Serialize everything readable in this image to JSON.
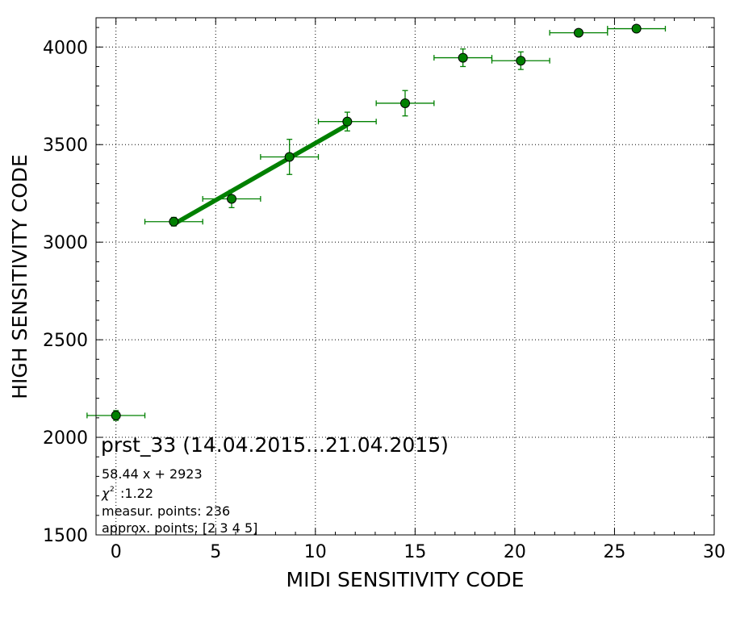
{
  "chart_data": {
    "type": "scatter",
    "title": "",
    "xlabel": "MIDI SENSITIVITY CODE",
    "ylabel": "HIGH SENSITIVITY CODE",
    "xlim": [
      -1,
      30
    ],
    "ylim": [
      1500,
      4150
    ],
    "grid": true,
    "xticks": [
      0,
      5,
      10,
      15,
      20,
      25,
      30
    ],
    "yticks": [
      1500,
      2000,
      2500,
      3000,
      3500,
      4000
    ],
    "colors": {
      "series": "#008000",
      "marker_edge": "#000000"
    },
    "points": [
      {
        "x": 0.0,
        "y": 2112,
        "xerr": 1.45,
        "yerr": 25
      },
      {
        "x": 2.9,
        "y": 3105,
        "xerr": 1.45,
        "yerr": 22
      },
      {
        "x": 5.8,
        "y": 3222,
        "xerr": 1.45,
        "yerr": 45
      },
      {
        "x": 8.7,
        "y": 3437,
        "xerr": 1.45,
        "yerr": 90
      },
      {
        "x": 11.6,
        "y": 3618,
        "xerr": 1.45,
        "yerr": 48
      },
      {
        "x": 14.5,
        "y": 3712,
        "xerr": 1.45,
        "yerr": 65
      },
      {
        "x": 17.4,
        "y": 3945,
        "xerr": 1.45,
        "yerr": 45
      },
      {
        "x": 20.3,
        "y": 3930,
        "xerr": 1.45,
        "yerr": 45
      },
      {
        "x": 23.2,
        "y": 4073,
        "xerr": 1.45,
        "yerr": 0
      },
      {
        "x": 26.1,
        "y": 4094,
        "xerr": 1.45,
        "yerr": 0
      }
    ],
    "fit_line": {
      "slope": 58.44,
      "intercept": 2923,
      "x_range": [
        2.9,
        11.6
      ]
    },
    "annotation": {
      "title": "prst_33 (14.04.2015...21.04.2015)",
      "equation": "58.44 x + 2923",
      "chi2_symbol": "χ",
      "chi2_superscript": "2",
      "chi2_value": ":1.22",
      "measur_points": "measur. points: 236",
      "approx_points": "approx. points: [2 3 4 5]"
    }
  }
}
